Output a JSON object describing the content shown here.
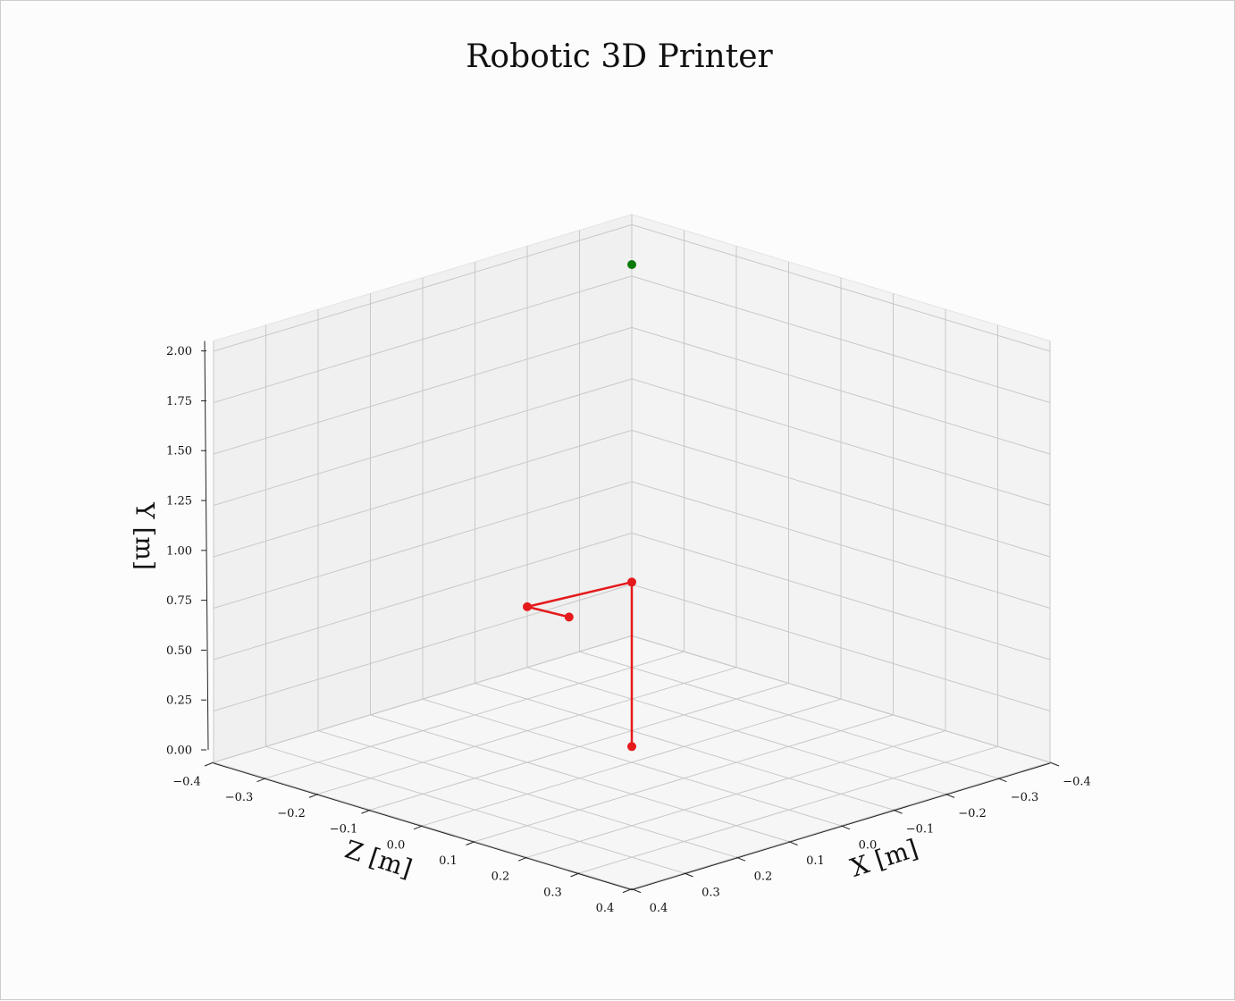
{
  "chart_data": {
    "type": "line3d",
    "title": "Robotic 3D Printer",
    "x_label": "X [m]",
    "y_label": "Y [m]",
    "z_label": "Z [m]",
    "xlim": [
      -0.4,
      0.4
    ],
    "ylim": [
      0,
      2.05
    ],
    "zlim": [
      -0.4,
      0.4
    ],
    "xticks": [
      {
        "value": -0.4,
        "label": "−0.4"
      },
      {
        "value": -0.3,
        "label": "−0.3"
      },
      {
        "value": -0.2,
        "label": "−0.2"
      },
      {
        "value": -0.1,
        "label": "−0.1"
      },
      {
        "value": 0,
        "label": "0.0"
      },
      0.1,
      0.2,
      0.3,
      0.4
    ],
    "zticks": [
      {
        "value": -0.4,
        "label": "−0.4"
      },
      {
        "value": -0.3,
        "label": "−0.3"
      },
      {
        "value": -0.2,
        "label": "−0.2"
      },
      {
        "value": -0.1,
        "label": "−0.1"
      },
      {
        "value": 0,
        "label": "0.0"
      },
      0.1,
      0.2,
      0.3,
      0.4
    ],
    "yticks": [
      {
        "value": 0,
        "label": "0.00"
      },
      {
        "value": 0.25,
        "label": "0.25"
      },
      {
        "value": 0.5,
        "label": "0.50"
      },
      {
        "value": 0.75,
        "label": "0.75"
      },
      {
        "value": 1,
        "label": "1.00"
      },
      {
        "value": 1.25,
        "label": "1.25"
      },
      {
        "value": 1.5,
        "label": "1.50"
      },
      {
        "value": 1.75,
        "label": "1.75"
      },
      {
        "value": 2,
        "label": "2.00"
      }
    ],
    "grid": true,
    "series": [
      {
        "color": "#e41a1c",
        "line": true,
        "x": [
          -0.05,
          -0.05,
          0.05,
          0.01
        ],
        "y": [
          0,
          0.8,
          0.68,
          0.63
        ],
        "z": [
          -0.05,
          -0.05,
          -0.15,
          -0.11
        ]
      },
      {
        "color": "#0a7a0a",
        "line": false,
        "x": [
          -0.3
        ],
        "y": [
          1.96
        ],
        "z": [
          -0.3
        ]
      }
    ]
  }
}
